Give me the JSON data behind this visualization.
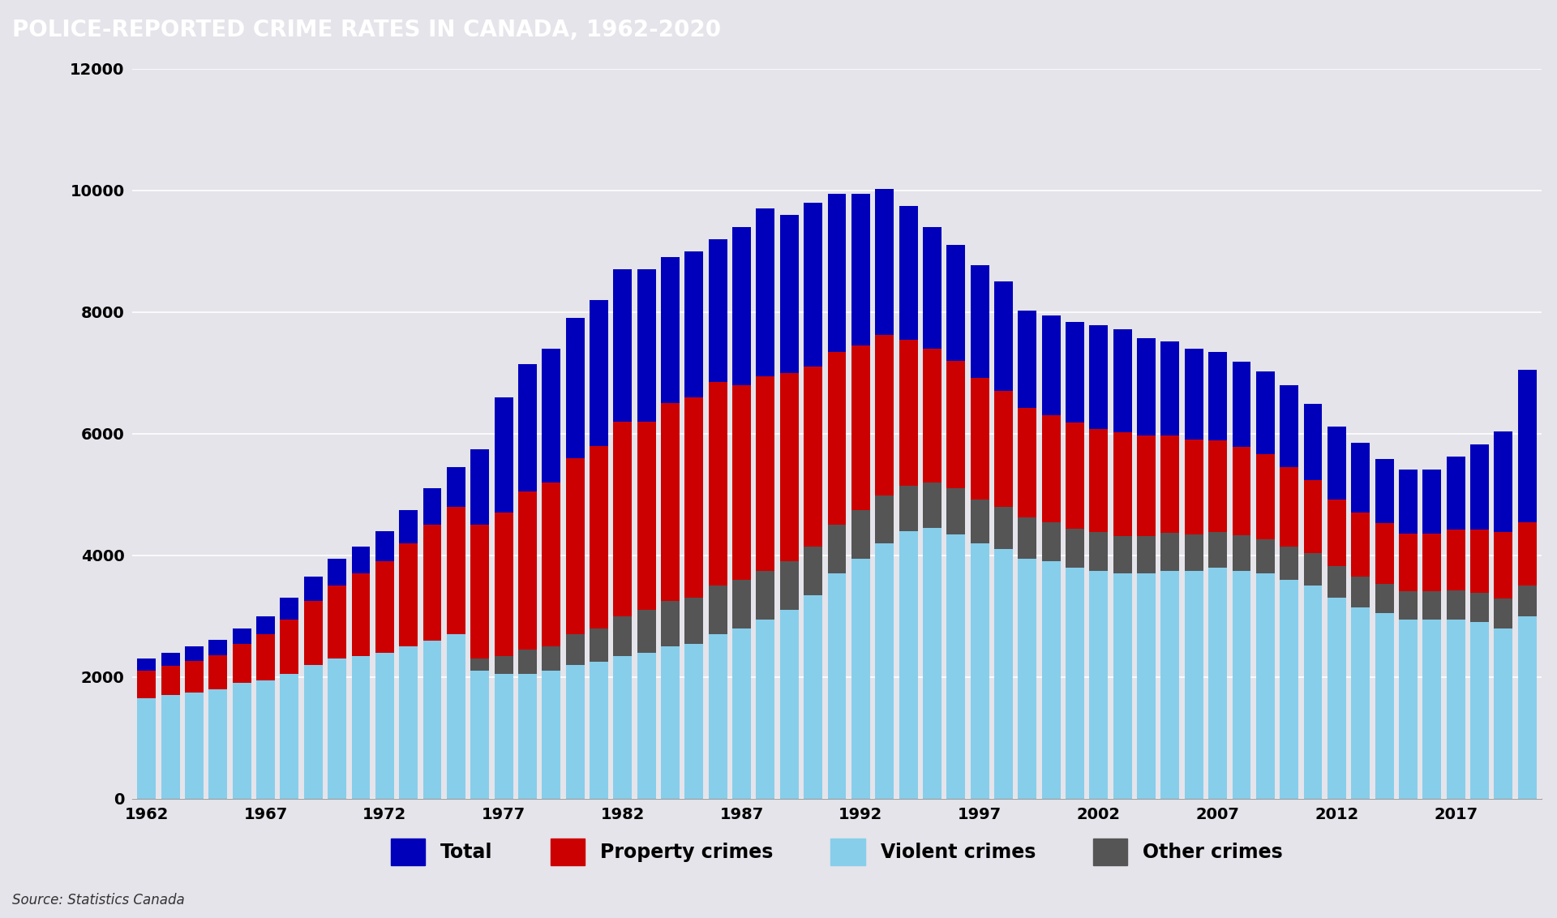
{
  "title": "POLICE-REPORTED CRIME RATES IN CANADA, 1962-2020",
  "title_bg": "#111111",
  "title_color": "#ffffff",
  "bg_color": "#e4e4ea",
  "source_text": "Source: Statistics Canada",
  "years": [
    1962,
    1963,
    1964,
    1965,
    1966,
    1967,
    1968,
    1969,
    1970,
    1971,
    1972,
    1973,
    1974,
    1975,
    1976,
    1977,
    1978,
    1979,
    1980,
    1981,
    1982,
    1983,
    1984,
    1985,
    1986,
    1987,
    1988,
    1989,
    1990,
    1991,
    1992,
    1993,
    1994,
    1995,
    1996,
    1997,
    1998,
    1999,
    2000,
    2001,
    2002,
    2003,
    2004,
    2005,
    2006,
    2007,
    2008,
    2009,
    2010,
    2011,
    2012,
    2013,
    2014,
    2015,
    2016,
    2017,
    2018,
    2019,
    2020
  ],
  "violent": [
    1650,
    1700,
    1750,
    1800,
    1900,
    1950,
    2050,
    2200,
    2300,
    2350,
    2400,
    2500,
    2600,
    2700,
    2100,
    2050,
    2050,
    2100,
    2200,
    2250,
    2350,
    2400,
    2500,
    2550,
    2700,
    2800,
    2950,
    3100,
    3350,
    3700,
    3950,
    4200,
    4400,
    4450,
    4350,
    4200,
    4100,
    3950,
    3900,
    3800,
    3750,
    3700,
    3700,
    3750,
    3750,
    3800,
    3750,
    3700,
    3600,
    3500,
    3300,
    3150,
    3050,
    2950,
    2950,
    2950,
    2900,
    2800,
    3000
  ],
  "other": [
    0,
    0,
    0,
    0,
    0,
    0,
    0,
    0,
    0,
    0,
    0,
    0,
    0,
    0,
    200,
    300,
    400,
    400,
    500,
    550,
    650,
    700,
    750,
    750,
    800,
    800,
    800,
    800,
    800,
    800,
    800,
    780,
    750,
    750,
    750,
    720,
    700,
    680,
    650,
    640,
    630,
    620,
    620,
    620,
    600,
    590,
    580,
    570,
    550,
    540,
    520,
    500,
    480,
    460,
    460,
    470,
    480,
    490,
    500
  ],
  "property": [
    450,
    480,
    520,
    560,
    650,
    750,
    900,
    1050,
    1200,
    1350,
    1500,
    1700,
    1900,
    2100,
    2200,
    2350,
    2600,
    2700,
    2900,
    3000,
    3200,
    3100,
    3250,
    3300,
    3350,
    3200,
    3200,
    3100,
    2950,
    2850,
    2700,
    2650,
    2400,
    2200,
    2100,
    2000,
    1900,
    1800,
    1750,
    1750,
    1700,
    1700,
    1650,
    1600,
    1550,
    1500,
    1450,
    1400,
    1300,
    1200,
    1100,
    1050,
    1000,
    950,
    950,
    1000,
    1050,
    1100,
    1050
  ],
  "total_top": [
    200,
    220,
    240,
    250,
    250,
    300,
    350,
    400,
    450,
    450,
    500,
    550,
    600,
    650,
    1250,
    1900,
    2100,
    2200,
    2300,
    2400,
    2500,
    2500,
    2400,
    2400,
    2350,
    2600,
    2750,
    2600,
    2700,
    2600,
    2500,
    2400,
    2200,
    2000,
    1900,
    1850,
    1800,
    1600,
    1650,
    1650,
    1700,
    1700,
    1600,
    1550,
    1500,
    1450,
    1400,
    1350,
    1350,
    1250,
    1200,
    1150,
    1050,
    1050,
    1050,
    1200,
    1400,
    1650,
    2500
  ],
  "color_violent": "#87CEEB",
  "color_other": "#555555",
  "color_property": "#cc0000",
  "color_total": "#0000bb",
  "ylim": [
    0,
    12000
  ],
  "yticks": [
    0,
    2000,
    4000,
    6000,
    8000,
    10000,
    12000
  ]
}
